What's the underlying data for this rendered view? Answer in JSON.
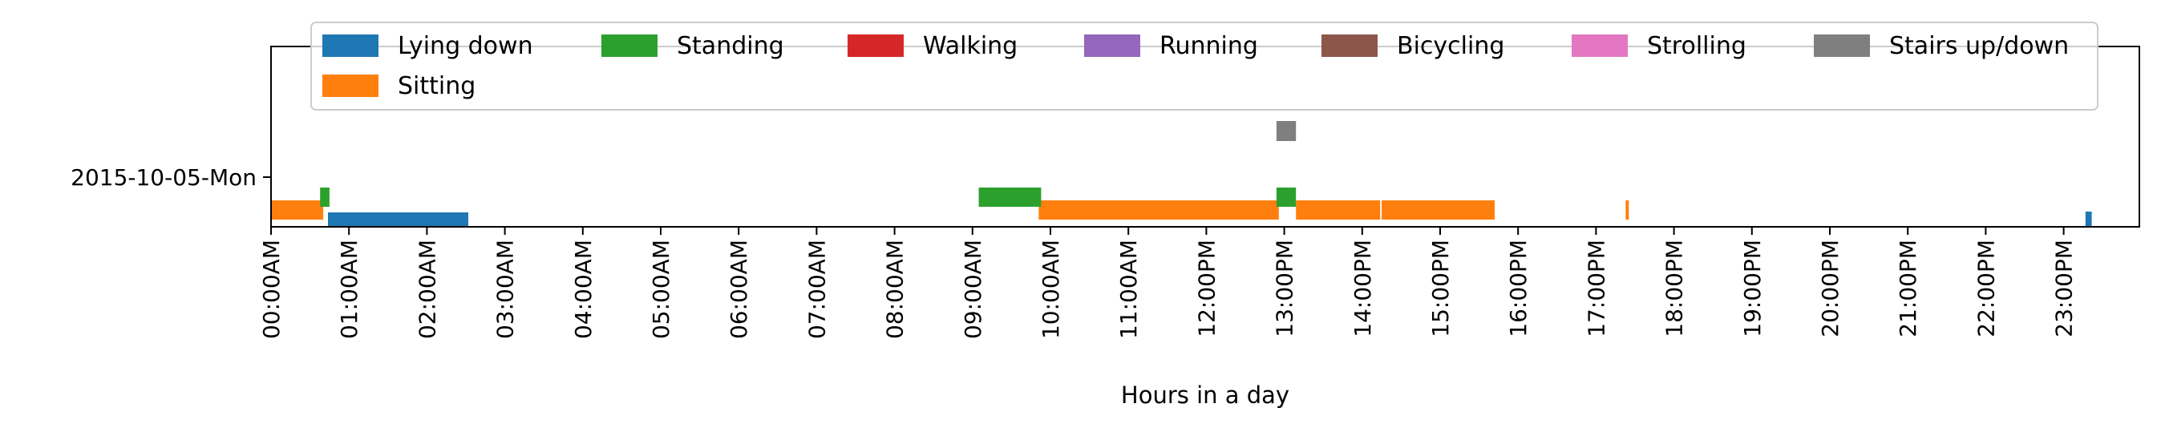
{
  "chart_data": {
    "type": "timeline",
    "xlabel": "Hours in a day",
    "ylabel": "",
    "xlim": [
      0,
      24
    ],
    "y_categories": [
      "2015-10-05-Mon"
    ],
    "x_ticks": [
      {
        "hour": 0,
        "label": "00:00AM"
      },
      {
        "hour": 1,
        "label": "01:00AM"
      },
      {
        "hour": 2,
        "label": "02:00AM"
      },
      {
        "hour": 3,
        "label": "03:00AM"
      },
      {
        "hour": 4,
        "label": "04:00AM"
      },
      {
        "hour": 5,
        "label": "05:00AM"
      },
      {
        "hour": 6,
        "label": "06:00AM"
      },
      {
        "hour": 7,
        "label": "07:00AM"
      },
      {
        "hour": 8,
        "label": "08:00AM"
      },
      {
        "hour": 9,
        "label": "09:00AM"
      },
      {
        "hour": 10,
        "label": "10:00AM"
      },
      {
        "hour": 11,
        "label": "11:00AM"
      },
      {
        "hour": 12,
        "label": "12:00PM"
      },
      {
        "hour": 13,
        "label": "13:00PM"
      },
      {
        "hour": 14,
        "label": "14:00PM"
      },
      {
        "hour": 15,
        "label": "15:00PM"
      },
      {
        "hour": 16,
        "label": "16:00PM"
      },
      {
        "hour": 17,
        "label": "17:00PM"
      },
      {
        "hour": 18,
        "label": "18:00PM"
      },
      {
        "hour": 19,
        "label": "19:00PM"
      },
      {
        "hour": 20,
        "label": "20:00PM"
      },
      {
        "hour": 21,
        "label": "21:00PM"
      },
      {
        "hour": 22,
        "label": "22:00PM"
      },
      {
        "hour": 23,
        "label": "23:00PM"
      }
    ],
    "legend": {
      "placement": "top",
      "entries": [
        {
          "label": "Lying down",
          "color": "#1f77b4"
        },
        {
          "label": "Standing",
          "color": "#2ca02c"
        },
        {
          "label": "Walking",
          "color": "#d62728"
        },
        {
          "label": "Running",
          "color": "#9467bd"
        },
        {
          "label": "Bicycling",
          "color": "#8c564b"
        },
        {
          "label": "Strolling",
          "color": "#e377c2"
        },
        {
          "label": "Stairs up/down",
          "color": "#7f7f7f"
        },
        {
          "label": "Sitting",
          "color": "#ff7f0e"
        }
      ]
    },
    "series": [
      {
        "name": "Sitting",
        "color": "#ff7f0e",
        "intervals": [
          [
            0.0,
            0.67
          ],
          [
            9.85,
            12.93
          ],
          [
            13.15,
            14.23
          ],
          [
            14.25,
            15.7
          ],
          [
            17.38,
            17.42
          ]
        ]
      },
      {
        "name": "Lying down",
        "color": "#1f77b4",
        "intervals": [
          [
            0.73,
            2.53
          ],
          [
            23.28,
            23.36
          ]
        ]
      },
      {
        "name": "Standing",
        "color": "#2ca02c",
        "intervals": [
          [
            0.63,
            0.75
          ],
          [
            9.08,
            9.88
          ],
          [
            12.9,
            13.15
          ]
        ]
      },
      {
        "name": "Stairs up/down",
        "color": "#7f7f7f",
        "intervals": [
          [
            12.9,
            13.15
          ]
        ]
      }
    ]
  }
}
